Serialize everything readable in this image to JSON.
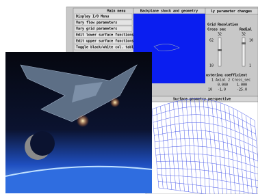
{
  "menu": {
    "title": "Main menu",
    "items": [
      "Display I/O Menu",
      "Vary flow parameters",
      "Vary grid parameters",
      "Edit lower surface functions",
      "Edit upper surface functions",
      "Toggle black/white col. table"
    ]
  },
  "viewport": {
    "title": "Backplane shock and geometry"
  },
  "params": {
    "title": "ly parameter changes",
    "grid_title": "Grid Resolution",
    "columns": [
      "Cross sec",
      "Radial"
    ],
    "values": [
      "32",
      "32"
    ],
    "slider1": {
      "max": "62",
      "min": "10"
    },
    "slider2": {
      "max": "10",
      "min": "1"
    },
    "coeff_title": "usterinq coefficient",
    "coeff_header": "1 Axial 2 Cross_sec",
    "row1": [
      "0.040",
      "1.000"
    ],
    "row2": [
      "10",
      "-1.0",
      "-25.0"
    ]
  },
  "surface": {
    "title": "Surface geometry perspective"
  }
}
